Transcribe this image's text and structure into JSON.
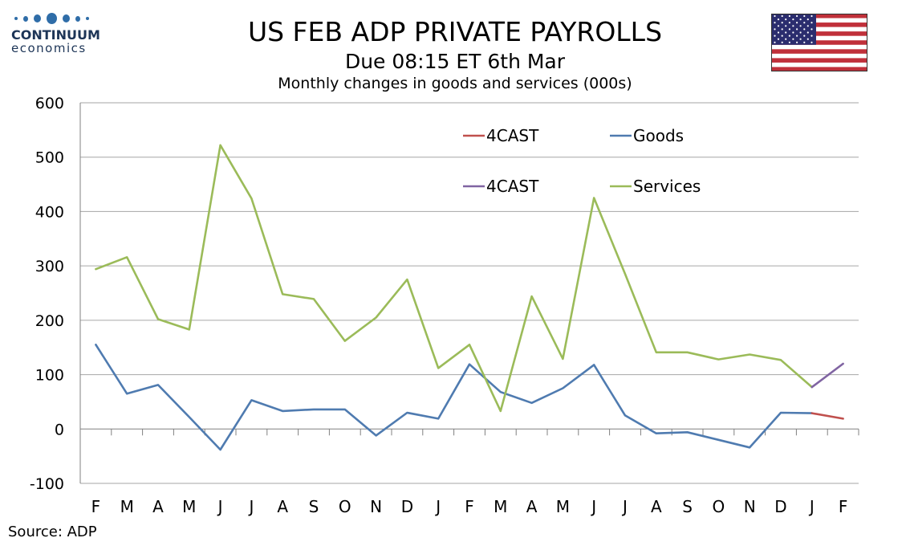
{
  "logo": {
    "brand": "CONTINUUM",
    "sub": "economics"
  },
  "header": {
    "title": "US FEB ADP PRIVATE PAYROLLS",
    "subtitle": "Due 08:15 ET 6th Mar",
    "chart_subtitle": "Monthly changes in goods and services (000s)"
  },
  "source": "Source: ADP",
  "flag_icon": "us-flag-icon",
  "colors": {
    "goods": "#4f7bb0",
    "services": "#9bbb59",
    "forecast_goods": "#c0504d",
    "forecast_services": "#8064a2",
    "grid": "#a6a6a6",
    "axis": "#808080"
  },
  "chart_data": {
    "type": "line",
    "categories": [
      "F",
      "M",
      "A",
      "M",
      "J",
      "J",
      "A",
      "S",
      "O",
      "N",
      "D",
      "J",
      "F",
      "M",
      "A",
      "M",
      "J",
      "J",
      "A",
      "S",
      "O",
      "N",
      "D",
      "J",
      "F"
    ],
    "ylim": [
      -100,
      600
    ],
    "yticks": [
      -100,
      0,
      100,
      200,
      300,
      400,
      500,
      600
    ],
    "grid": true,
    "legend_position": "top-right",
    "series": [
      {
        "name": "Goods",
        "color": "#4f7bb0",
        "values": [
          155,
          65,
          81,
          22,
          -38,
          53,
          33,
          36,
          36,
          -12,
          30,
          19,
          119,
          68,
          48,
          75,
          118,
          25,
          -8,
          -6,
          -20,
          -34,
          30,
          29,
          null
        ]
      },
      {
        "name": "Services",
        "color": "#9bbb59",
        "values": [
          294,
          316,
          202,
          183,
          522,
          424,
          248,
          239,
          162,
          205,
          275,
          112,
          155,
          33,
          244,
          129,
          425,
          285,
          141,
          141,
          128,
          137,
          127,
          77,
          null
        ]
      },
      {
        "name": "4CAST",
        "color": "#c0504d",
        "values": [
          null,
          null,
          null,
          null,
          null,
          null,
          null,
          null,
          null,
          null,
          null,
          null,
          null,
          null,
          null,
          null,
          null,
          null,
          null,
          null,
          null,
          null,
          null,
          29,
          19
        ]
      },
      {
        "name": "4CAST",
        "color": "#8064a2",
        "values": [
          null,
          null,
          null,
          null,
          null,
          null,
          null,
          null,
          null,
          null,
          null,
          null,
          null,
          null,
          null,
          null,
          null,
          null,
          null,
          null,
          null,
          null,
          null,
          77,
          120
        ]
      }
    ],
    "legend": [
      {
        "label": "4CAST",
        "color": "#c0504d"
      },
      {
        "label": "Goods",
        "color": "#4f7bb0"
      },
      {
        "label": "4CAST",
        "color": "#8064a2"
      },
      {
        "label": "Services",
        "color": "#9bbb59"
      }
    ]
  }
}
